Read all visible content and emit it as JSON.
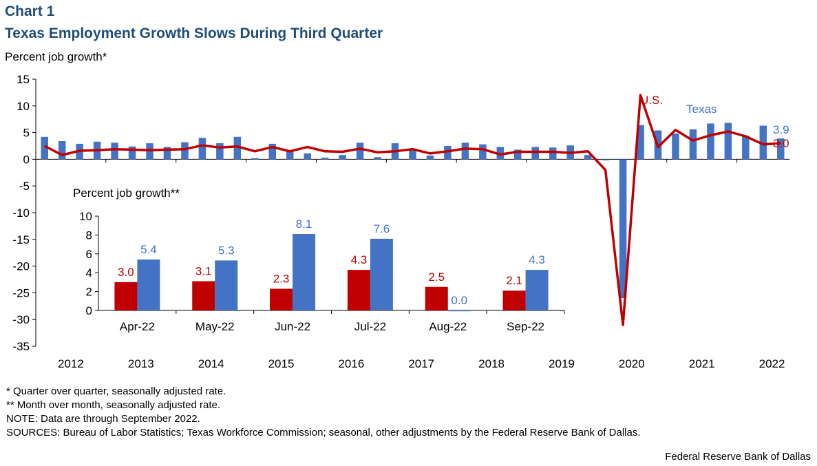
{
  "header": {
    "chart_number": "Chart 1",
    "title": "Texas Employment  Growth Slows During Third Quarter"
  },
  "colors": {
    "texas": "#4472c4",
    "us": "#c00000",
    "title": "#1f4e79"
  },
  "notes": [
    "* Quarter over quarter, seasonally adjusted rate.",
    "** Month over month, seasonally adjusted rate.",
    "NOTE: Data are through September 2022.",
    "SOURCES: Bureau of Labor Statistics; Texas Workforce Commission; seasonal, other adjustments by the Federal Reserve Bank of Dallas."
  ],
  "credit": "Federal Reserve Bank of Dallas",
  "chart_data": [
    {
      "type": "bar+line",
      "title": "Texas Employment  Growth Slows During Third Quarter",
      "ylabel": "Percent job growth*",
      "ylim": [
        -35,
        15
      ],
      "yticks": [
        15,
        10,
        5,
        0,
        -5,
        -10,
        -15,
        -20,
        -25,
        -30,
        -35
      ],
      "year_labels": [
        "2012",
        "2013",
        "2014",
        "2015",
        "2016",
        "2017",
        "2018",
        "2019",
        "2020",
        "2021",
        "2022"
      ],
      "quarters_start": "2012Q1",
      "series": [
        {
          "name": "Texas",
          "type": "bar",
          "values": [
            4.2,
            3.4,
            2.9,
            3.3,
            3.1,
            2.4,
            3.0,
            2.3,
            3.2,
            4.0,
            3.0,
            4.2,
            0.2,
            2.9,
            1.7,
            1.1,
            0.3,
            0.8,
            3.1,
            0.4,
            3.0,
            2.0,
            0.7,
            2.5,
            3.1,
            2.8,
            2.3,
            1.8,
            2.3,
            2.2,
            2.6,
            0.8,
            -0.2,
            -26.0,
            6.4,
            5.4,
            4.8,
            5.6,
            6.7,
            6.8,
            4.4,
            6.3,
            3.9
          ]
        },
        {
          "name": "U.S.",
          "type": "line",
          "values": [
            2.5,
            0.8,
            1.6,
            1.7,
            1.9,
            1.8,
            1.7,
            1.8,
            1.9,
            2.6,
            2.2,
            2.4,
            1.5,
            2.3,
            1.5,
            2.3,
            1.5,
            1.4,
            2.0,
            1.3,
            1.5,
            1.9,
            1.1,
            1.5,
            2.0,
            1.9,
            0.9,
            1.4,
            1.4,
            1.4,
            1.2,
            1.5,
            -2.0,
            -31.0,
            12.0,
            2.3,
            5.5,
            3.5,
            4.5,
            5.2,
            4.3,
            2.8,
            3.0
          ]
        }
      ],
      "annotations": [
        {
          "text": "U.S.",
          "series": "U.S."
        },
        {
          "text": "Texas",
          "series": "Texas"
        },
        {
          "text": "3.9",
          "series": "Texas",
          "value": 3.9
        },
        {
          "text": "3.0",
          "series": "U.S.",
          "value": 3.0
        }
      ]
    },
    {
      "type": "bar",
      "ylabel": "Percent job growth**",
      "ylim": [
        0,
        10
      ],
      "yticks": [
        10,
        8,
        6,
        4,
        2,
        0
      ],
      "categories": [
        "Apr-22",
        "May-22",
        "Jun-22",
        "Jul-22",
        "Aug-22",
        "Sep-22"
      ],
      "series": [
        {
          "name": "U.S.",
          "values": [
            3.0,
            3.1,
            2.3,
            4.3,
            2.5,
            2.1
          ],
          "labels": [
            "3.0",
            "3.1",
            "2.3",
            "4.3",
            "2.5",
            "2.1"
          ]
        },
        {
          "name": "Texas",
          "values": [
            5.4,
            5.3,
            8.1,
            7.6,
            0.0,
            4.3
          ],
          "labels": [
            "5.4",
            "5.3",
            "8.1",
            "7.6",
            "0.0",
            "4.3"
          ]
        }
      ]
    }
  ]
}
